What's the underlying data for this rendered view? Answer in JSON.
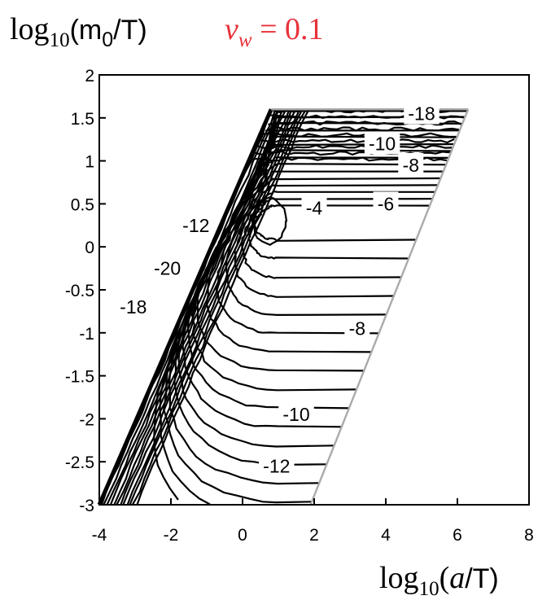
{
  "chart_data": {
    "type": "contour",
    "title": {
      "ylabel_prefix": "log",
      "ylabel_sub": "10",
      "ylabel_arg": "(m",
      "ylabel_arg_sub": "0",
      "ylabel_arg_end": "/T)",
      "param_symbol": "v",
      "param_sub": "w",
      "param_value": " = 0.1",
      "param_color": "#e8323a"
    },
    "xlabel": {
      "prefix": "log",
      "sub": "10",
      "open": "(",
      "var": "a",
      "close": "/T)"
    },
    "xlim": [
      -4,
      8
    ],
    "ylim": [
      -3,
      2
    ],
    "xticks": [
      "-4",
      "-2",
      "0",
      "2",
      "4",
      "6",
      "8"
    ],
    "yticks": [
      "2",
      "1.5",
      "1",
      "0.5",
      "0",
      "-0.5",
      "-1",
      "-1.5",
      "-2",
      "-2.5",
      "-3"
    ],
    "region": {
      "left_edge": [
        [
          -4,
          -3
        ],
        [
          0.8,
          1.6
        ]
      ],
      "right_edge": [
        [
          1.9,
          -3
        ],
        [
          6.3,
          1.6
        ]
      ],
      "top": 1.6
    },
    "peak": {
      "x": 0.75,
      "y": 0.3,
      "level": -4
    },
    "contour_labels": [
      {
        "text": "-18",
        "x": 5.0,
        "y": 1.55
      },
      {
        "text": "-10",
        "x": 3.9,
        "y": 1.2
      },
      {
        "text": "-8",
        "x": 4.7,
        "y": 0.95
      },
      {
        "text": "-6",
        "x": 4.0,
        "y": 0.5
      },
      {
        "text": "-4",
        "x": 2.0,
        "y": 0.45
      },
      {
        "text": "-12",
        "x": -1.3,
        "y": 0.25
      },
      {
        "text": "-20",
        "x": -2.1,
        "y": -0.25
      },
      {
        "text": "-18",
        "x": -3.05,
        "y": -0.7
      },
      {
        "text": "-8",
        "x": 3.2,
        "y": -0.95
      },
      {
        "text": "-10",
        "x": 1.5,
        "y": -1.95
      },
      {
        "text": "-12",
        "x": 0.95,
        "y": -2.55
      }
    ]
  }
}
